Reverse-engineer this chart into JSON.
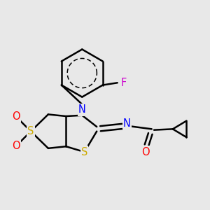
{
  "background_color": "#e8e8e8",
  "atom_colors": {
    "C": "#000000",
    "N": "#0000ff",
    "S": "#ccaa00",
    "O": "#ff0000",
    "F": "#cc00cc",
    "H": "#000000"
  },
  "bond_color": "#000000",
  "bond_width": 1.8,
  "figsize": [
    3.0,
    3.0
  ],
  "dpi": 100
}
